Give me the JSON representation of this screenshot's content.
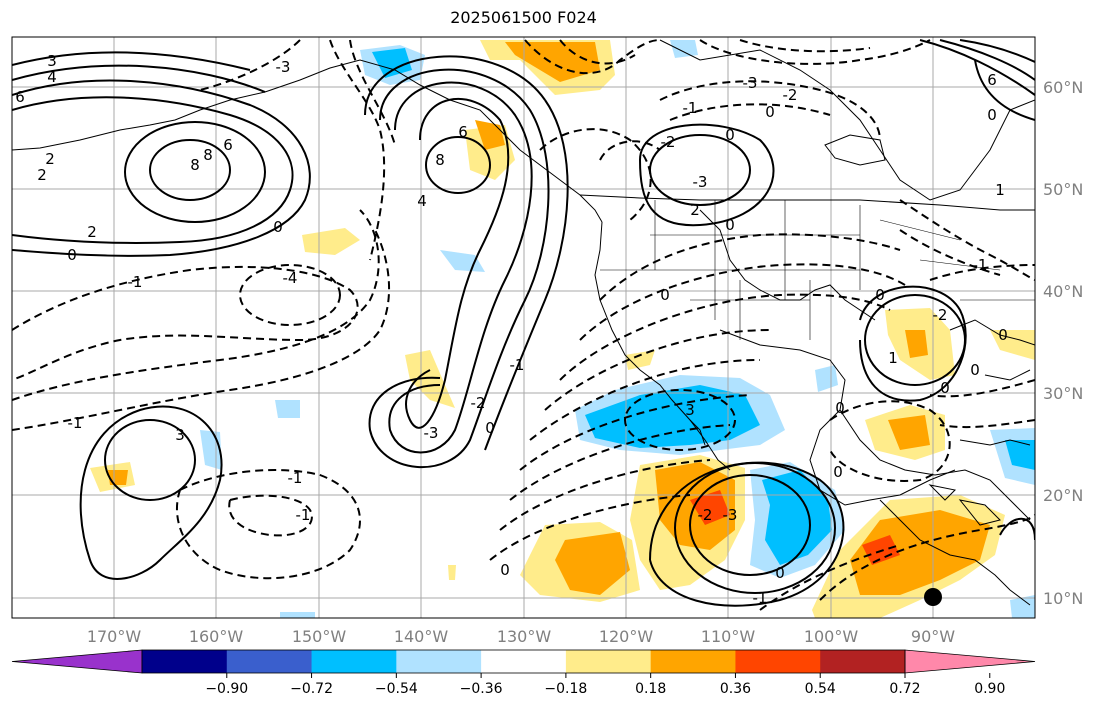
{
  "title": "2025061500 F024",
  "map": {
    "projection": "mercator",
    "lon_range": [
      -180,
      -80
    ],
    "lat_range": [
      8,
      65
    ],
    "grid": true,
    "lat_labels": [
      "60°N",
      "50°N",
      "40°N",
      "30°N",
      "20°N",
      "10°N"
    ],
    "lon_labels": [
      "170°W",
      "160°W",
      "150°W",
      "140°W",
      "130°W",
      "120°W",
      "110°W",
      "100°W",
      "90°W"
    ],
    "marker": {
      "lon": -90,
      "lat": 10,
      "color": "#000000",
      "icon": "filled-circle"
    }
  },
  "colorbar": {
    "levels": [
      "−0.90",
      "−0.72",
      "−0.54",
      "−0.36",
      "−0.18",
      "0.18",
      "0.36",
      "0.54",
      "0.72",
      "0.90"
    ],
    "colors": [
      "#9932cc",
      "#00008b",
      "#3a5fcd",
      "#00bfff",
      "#b0e2ff",
      "#ffffff",
      "#ffec8b",
      "#ffa500",
      "#ff4500",
      "#b22222",
      "#ff88aa"
    ]
  },
  "contour_labels": [
    {
      "text": "3"
    },
    {
      "text": "4"
    },
    {
      "text": "6"
    },
    {
      "text": "2"
    },
    {
      "text": "2"
    },
    {
      "text": "0"
    },
    {
      "text": "8"
    },
    {
      "text": "6"
    },
    {
      "text": "-3"
    },
    {
      "text": "-4"
    },
    {
      "text": "-1"
    },
    {
      "text": "-1"
    },
    {
      "text": "2"
    },
    {
      "text": "0"
    },
    {
      "text": "8"
    },
    {
      "text": "6"
    },
    {
      "text": "4"
    },
    {
      "text": "-3"
    },
    {
      "text": "-2"
    },
    {
      "text": "-1"
    },
    {
      "text": "0"
    },
    {
      "text": "-1"
    },
    {
      "text": "-1"
    },
    {
      "text": "-3"
    },
    {
      "text": "-2"
    },
    {
      "text": "0"
    },
    {
      "text": "-2"
    },
    {
      "text": "-3"
    },
    {
      "text": "0"
    },
    {
      "text": "-1"
    },
    {
      "text": "2"
    },
    {
      "text": "0"
    },
    {
      "text": "3"
    },
    {
      "text": "-2"
    },
    {
      "text": "0"
    },
    {
      "text": "0"
    },
    {
      "text": "-1"
    },
    {
      "text": "1"
    },
    {
      "text": "0"
    },
    {
      "text": "0"
    },
    {
      "text": "1"
    },
    {
      "text": "0"
    },
    {
      "text": "0"
    },
    {
      "text": "0"
    },
    {
      "text": "-1"
    },
    {
      "text": "0"
    },
    {
      "text": "-3"
    },
    {
      "text": "-2"
    },
    {
      "text": "0"
    },
    {
      "text": "3"
    },
    {
      "text": "8"
    },
    {
      "text": "6"
    },
    {
      "text": "0"
    }
  ]
}
